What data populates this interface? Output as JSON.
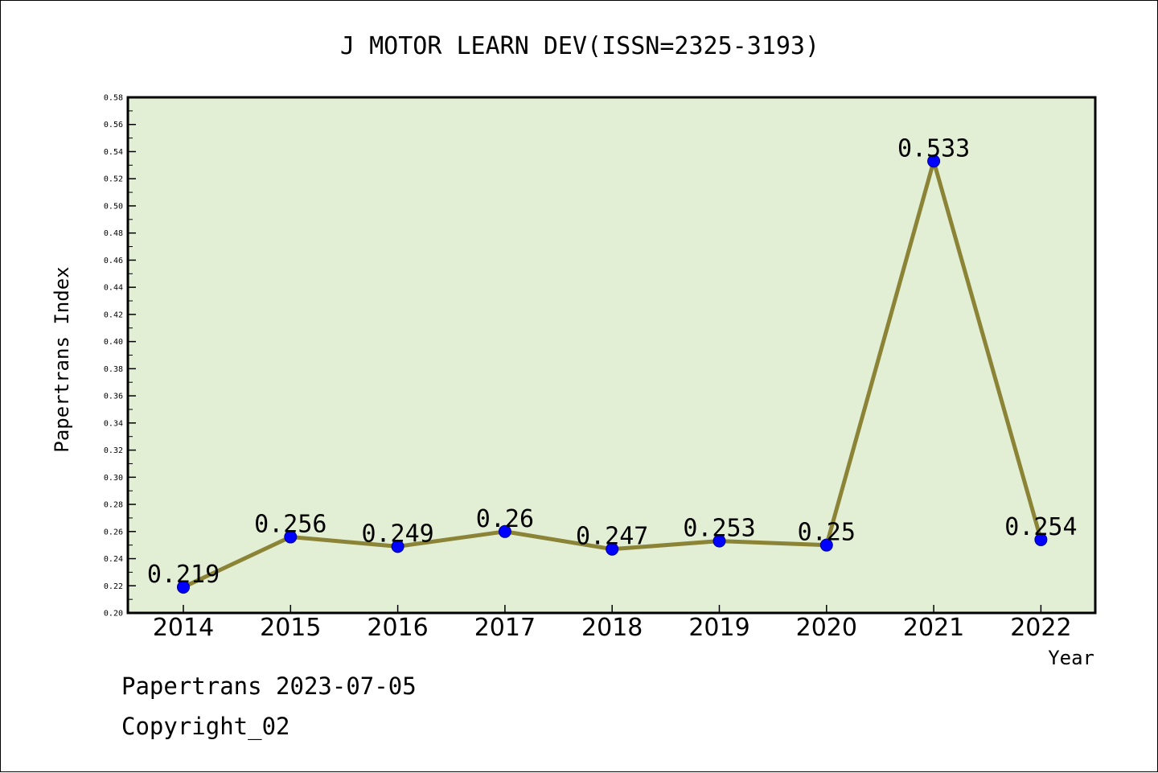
{
  "colors": {
    "plot_background": "#e2efd4",
    "line": "#8b8336",
    "marker": "#0000ff",
    "marker_edge": "#00008b",
    "axis": "#000000"
  },
  "chart_data": {
    "type": "line",
    "title": "J MOTOR LEARN DEV(ISSN=2325-3193)",
    "xlabel": "Year",
    "ylabel": "Papertrans Index",
    "categories": [
      "2014",
      "2015",
      "2016",
      "2017",
      "2018",
      "2019",
      "2020",
      "2021",
      "2022"
    ],
    "series": [
      {
        "values": [
          0.219,
          0.256,
          0.249,
          0.26,
          0.247,
          0.253,
          0.25,
          0.533,
          0.254
        ],
        "data_labels": [
          "0.219",
          "0.256",
          "0.249",
          "0.26",
          "0.247",
          "0.253",
          "0.25",
          "0.533",
          "0.254"
        ]
      }
    ],
    "ylim": [
      0.2,
      0.58
    ],
    "yticks": [
      "0.20",
      "0.22",
      "0.24",
      "0.26",
      "0.28",
      "0.30",
      "0.32",
      "0.34",
      "0.36",
      "0.38",
      "0.40",
      "0.42",
      "0.44",
      "0.46",
      "0.48",
      "0.50",
      "0.52",
      "0.54",
      "0.56",
      "0.58"
    ],
    "grid": false,
    "legend": "none"
  },
  "footer": {
    "date_line": "Papertrans 2023-07-05",
    "copyright_line": "Copyright_02"
  }
}
